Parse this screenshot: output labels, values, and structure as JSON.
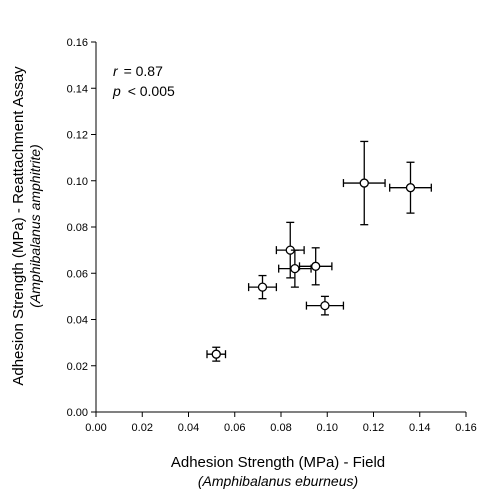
{
  "chart_data": {
    "type": "scatter",
    "xlabel": "Adhesion Strength (MPa) - Field",
    "xlabel_sub": "(Amphibalanus eburneus)",
    "ylabel": "Adhesion Strength (MPa) - Reattachment Assay",
    "ylabel_sub": "(Amphibalanus amphitrite)",
    "xlim": [
      0,
      0.16
    ],
    "ylim": [
      0,
      0.16
    ],
    "xticks": [
      "0.00",
      "0.02",
      "0.04",
      "0.06",
      "0.08",
      "0.10",
      "0.12",
      "0.14",
      "0.16"
    ],
    "yticks": [
      "0.00",
      "0.02",
      "0.04",
      "0.06",
      "0.08",
      "0.10",
      "0.12",
      "0.14",
      "0.16"
    ],
    "annotations": {
      "r_label": "r",
      "r_value": "= 0.87",
      "p_label": "p",
      "p_value": "< 0.005"
    },
    "points": [
      {
        "x": 0.052,
        "y": 0.025,
        "xerr": 0.004,
        "yerr": 0.003
      },
      {
        "x": 0.072,
        "y": 0.054,
        "xerr": 0.006,
        "yerr": 0.005
      },
      {
        "x": 0.084,
        "y": 0.07,
        "xerr": 0.006,
        "yerr": 0.012
      },
      {
        "x": 0.086,
        "y": 0.062,
        "xerr": 0.007,
        "yerr": 0.008
      },
      {
        "x": 0.095,
        "y": 0.063,
        "xerr": 0.007,
        "yerr": 0.008
      },
      {
        "x": 0.099,
        "y": 0.046,
        "xerr": 0.008,
        "yerr": 0.004
      },
      {
        "x": 0.116,
        "y": 0.099,
        "xerr": 0.009,
        "yerr": 0.018
      },
      {
        "x": 0.136,
        "y": 0.097,
        "xerr": 0.009,
        "yerr": 0.011
      }
    ]
  }
}
